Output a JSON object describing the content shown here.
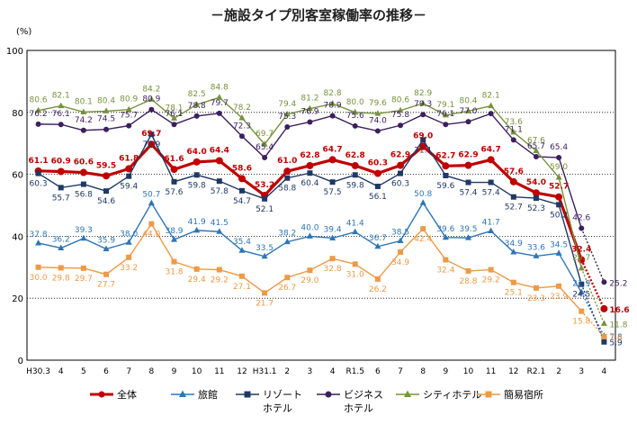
{
  "chart_data": {
    "type": "line",
    "title": "－施設タイプ別客室稼働率の推移－",
    "ylabel": "(%)",
    "ylim": [
      0,
      100
    ],
    "yticks": [
      "0",
      "20",
      "40",
      "60",
      "80",
      "100"
    ],
    "grid": true,
    "legend_position": "bottom",
    "categories": [
      "H30.3",
      "4",
      "5",
      "6",
      "7",
      "8",
      "9",
      "10",
      "11",
      "12",
      "H31.1",
      "2",
      "3",
      "4",
      "R1.5",
      "6",
      "7",
      "8",
      "9",
      "10",
      "11",
      "12",
      "R2.1",
      "2",
      "3",
      "4"
    ],
    "series": [
      {
        "name": "全体",
        "color": "#c00000",
        "marker": "circle",
        "values": [
          61.1,
          60.9,
          60.6,
          59.5,
          61.8,
          69.7,
          61.6,
          64.0,
          64.4,
          58.6,
          53.2,
          61.0,
          62.8,
          64.7,
          62.8,
          60.3,
          62.9,
          69.0,
          62.7,
          62.9,
          64.7,
          57.6,
          54.0,
          52.7,
          32.4,
          16.6
        ],
        "labels": [
          "61.1",
          "60.9",
          "60.6",
          "59.5",
          "61.8",
          "69.7",
          "61.6",
          "64.0",
          "64.4",
          "58.6",
          "53.2",
          "61.0",
          "62.8",
          "64.7",
          "62.8",
          "60.3",
          "62.9",
          "69.0",
          "62.7",
          "62.9",
          "64.7",
          "57.6",
          "54.0",
          "52.7",
          "32.4",
          "16.6"
        ]
      },
      {
        "name": "旅館",
        "color": "#2e75b6",
        "marker": "triangle",
        "values": [
          37.8,
          36.2,
          39.3,
          35.9,
          38.0,
          50.7,
          38.9,
          41.9,
          41.5,
          35.4,
          33.5,
          38.2,
          40.0,
          39.4,
          41.4,
          36.7,
          38.5,
          50.8,
          39.6,
          39.5,
          41.7,
          34.9,
          33.6,
          34.5,
          21.9,
          7.8
        ],
        "labels": [
          "37.8",
          "36.2",
          "39.3",
          "35.9",
          "38.0",
          "50.7",
          "38.9",
          "41.9",
          "41.5",
          "35.4",
          "33.5",
          "38.2",
          "40.0",
          "39.4",
          "41.4",
          "36.7",
          "38.5",
          "50.8",
          "39.6",
          "39.5",
          "41.7",
          "34.9",
          "33.6",
          "34.5",
          "21.9",
          "7.8"
        ]
      },
      {
        "name": "リゾートホテル",
        "legend_lines": [
          "リゾート",
          "ホテル"
        ],
        "color": "#1f3864",
        "marker": "square",
        "values": [
          60.3,
          55.7,
          56.8,
          54.6,
          59.4,
          72.9,
          57.6,
          59.8,
          57.8,
          54.7,
          52.1,
          58.8,
          60.4,
          57.5,
          59.8,
          56.1,
          60.3,
          71.1,
          59.6,
          57.4,
          57.4,
          52.7,
          52.3,
          50.2,
          24.5,
          5.9
        ],
        "labels": [
          "60.3",
          "55.7",
          "56.8",
          "54.6",
          "59.4",
          "72.9",
          "57.6",
          "59.8",
          "57.8",
          "54.7",
          "52.1",
          "58.8",
          "60.4",
          "57.5",
          "59.8",
          "56.1",
          "60.3",
          "71.1",
          "59.6",
          "57.4",
          "57.4",
          "52.7",
          "52.3",
          "50.2",
          "24.5",
          "5.9"
        ]
      },
      {
        "name": "ビジネスホテル",
        "legend_lines": [
          "ビジネス",
          "ホテル"
        ],
        "color": "#3b1f5e",
        "marker": "circle",
        "values": [
          76.2,
          76.1,
          74.2,
          74.5,
          75.7,
          80.9,
          76.1,
          78.8,
          79.7,
          72.3,
          65.4,
          75.3,
          76.9,
          78.9,
          75.6,
          74.0,
          75.8,
          79.3,
          76.1,
          77.0,
          79.6,
          71.1,
          65.7,
          65.4,
          42.6,
          25.2
        ],
        "labels": [
          "76.2",
          "76.1",
          "74.2",
          "74.5",
          "75.7",
          "80.9",
          "76.1",
          "78.8",
          "79.7",
          "72.3",
          "65.4",
          "75.3",
          "76.9",
          "78.9",
          "75.6",
          "74.0",
          "75.8",
          "79.3",
          "76.1",
          "77.0",
          "",
          "71.1",
          "65.7",
          "65.4",
          "42.6",
          "25.2"
        ]
      },
      {
        "name": "シティホテル",
        "color": "#76923c",
        "marker": "triangle",
        "values": [
          80.6,
          82.1,
          80.1,
          80.4,
          80.9,
          84.2,
          78.1,
          82.5,
          84.8,
          78.2,
          69.7,
          79.4,
          81.2,
          82.8,
          80.0,
          79.6,
          80.6,
          82.9,
          79.1,
          80.4,
          82.1,
          73.6,
          67.6,
          59.0,
          29.7,
          11.8
        ],
        "labels": [
          "80.6",
          "82.1",
          "80.1",
          "80.4",
          "80.9",
          "84.2",
          "78.1",
          "82.5",
          "84.8",
          "78.2",
          "69.7",
          "79.4",
          "81.2",
          "82.8",
          "80.0",
          "79.6",
          "80.6",
          "82.9",
          "79.1",
          "80.4",
          "82.1",
          "73.6",
          "67.6",
          "59.0",
          "29.7",
          "11.8"
        ]
      },
      {
        "name": "簡易宿所",
        "color": "#ed9a46",
        "marker": "square",
        "values": [
          30.0,
          29.8,
          29.7,
          27.7,
          33.2,
          44.0,
          31.8,
          29.4,
          29.2,
          27.1,
          21.7,
          26.7,
          29.0,
          32.8,
          31.0,
          26.2,
          34.9,
          42.4,
          32.4,
          28.8,
          29.2,
          25.1,
          23.3,
          23.9,
          15.8,
          7.6
        ],
        "labels": [
          "30.0",
          "29.8",
          "29.7",
          "27.7",
          "33.2",
          "44.0",
          "31.8",
          "29.4",
          "29.2",
          "27.1",
          "21.7",
          "26.7",
          "29.0",
          "32.8",
          "31.0",
          "26.2",
          "34.9",
          "42.4",
          "32.4",
          "28.8",
          "29.2",
          "25.1",
          "23.3",
          "23.9",
          "15.8",
          "7.6"
        ]
      }
    ]
  }
}
